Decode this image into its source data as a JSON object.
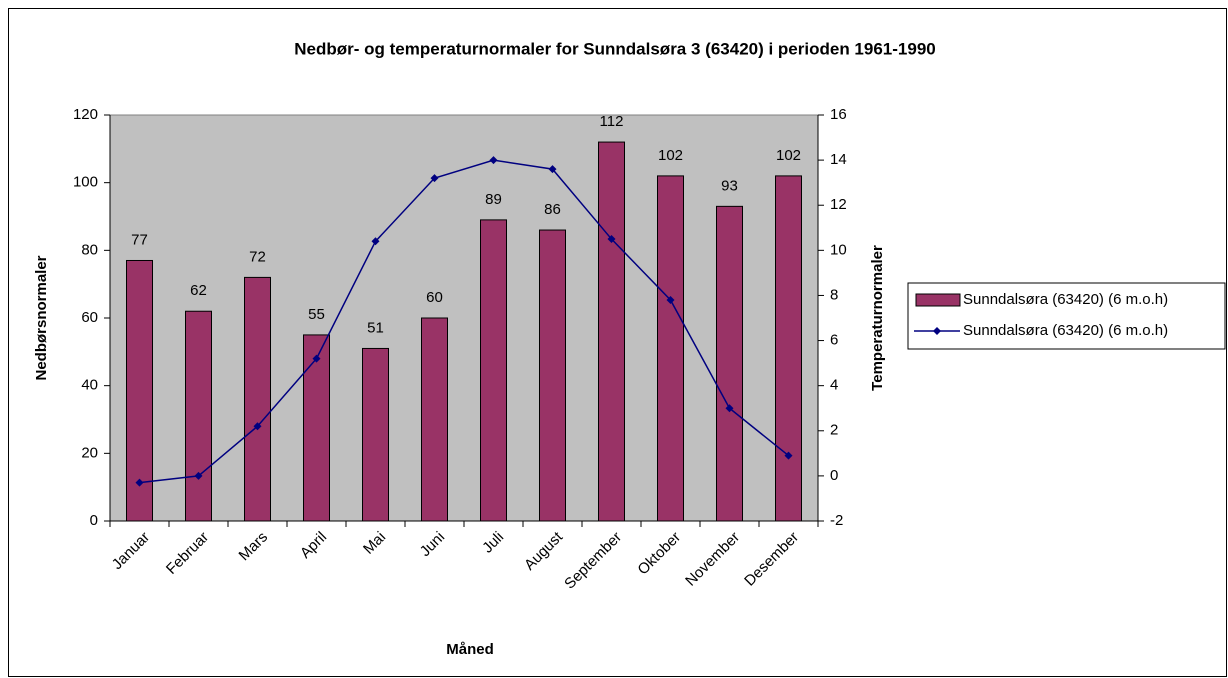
{
  "chart_data": {
    "type": "bar",
    "title": "Nedbør- og temperaturnormaler for Sunndalsøra 3 (63420) i perioden 1961-1990",
    "x_label": "Måned",
    "y_label": "Nedbørsnormaler",
    "y2_label": "Temperaturnormaler",
    "categories": [
      "Januar",
      "Februar",
      "Mars",
      "April",
      "Mai",
      "Juni",
      "Juli",
      "August",
      "September",
      "Oktober",
      "November",
      "Desember"
    ],
    "series": [
      {
        "name": "Sunndalsøra (63420) (6 m.o.h)",
        "type": "bar",
        "color": "#993366",
        "values": [
          77,
          62,
          72,
          55,
          51,
          60,
          89,
          86,
          112,
          102,
          93,
          102
        ]
      },
      {
        "name": "Sunndalsøra (63420) (6 m.o.h)",
        "type": "line",
        "axis": "y2",
        "color": "#000080",
        "values": [
          -0.3,
          0.0,
          2.2,
          5.2,
          10.4,
          13.2,
          14.0,
          13.6,
          10.5,
          7.8,
          3.0,
          0.9
        ]
      }
    ],
    "ylim": [
      0,
      120
    ],
    "yticks": [
      0,
      20,
      40,
      60,
      80,
      100,
      120
    ],
    "y2lim": [
      -2,
      16
    ],
    "y2ticks": [
      -2,
      0,
      2,
      4,
      6,
      8,
      10,
      12,
      14,
      16
    ],
    "plot_background": "#c0c0c0",
    "legend": "right"
  }
}
